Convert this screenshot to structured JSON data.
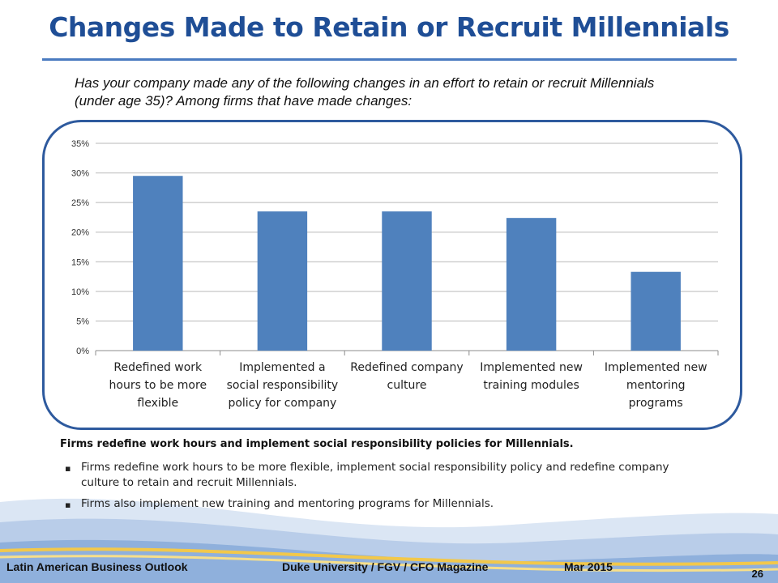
{
  "title": "Changes Made to Retain or Recruit Millennials",
  "question": "Has your company made any of the following changes in an effort to retain or recruit Millennials (under age 35)? Among firms that have made changes:",
  "chart_data": {
    "type": "bar",
    "categories": [
      "Redefined work hours to be more flexible",
      "Implemented a social responsibility policy for company",
      "Redefined company culture",
      "Implemented new training modules",
      "Implemented new mentoring programs"
    ],
    "category_lines": [
      [
        "Redefined work",
        "hours to be more",
        "flexible"
      ],
      [
        "Implemented a",
        "social responsibility",
        "policy for company"
      ],
      [
        "Redefined company",
        "culture"
      ],
      [
        "Implemented new",
        "training modules"
      ],
      [
        "Implemented new",
        "mentoring",
        "programs"
      ]
    ],
    "values": [
      29.5,
      23.5,
      23.5,
      22.4,
      13.3
    ],
    "ylim": [
      0,
      35
    ],
    "yticks": [
      "0%",
      "5%",
      "10%",
      "15%",
      "20%",
      "25%",
      "30%",
      "35%"
    ],
    "grid": true,
    "bar_color": "#4f81bd"
  },
  "insight": "Firms redefine work hours and implement social responsibility policies for Millennials.",
  "bullets": [
    "Firms redefine work hours to be more flexible, implement social responsibility policy and redefine company culture to retain and recruit Millennials.",
    "Firms also implement new training and mentoring programs for Millennials."
  ],
  "footer": {
    "left": "Latin American Business Outlook",
    "center": "Duke University / FGV / CFO Magazine",
    "date": "Mar 2015",
    "page": "26"
  },
  "colors": {
    "title": "#1f4e96",
    "frame": "#2e5a9e",
    "bars": "#4f81bd"
  }
}
